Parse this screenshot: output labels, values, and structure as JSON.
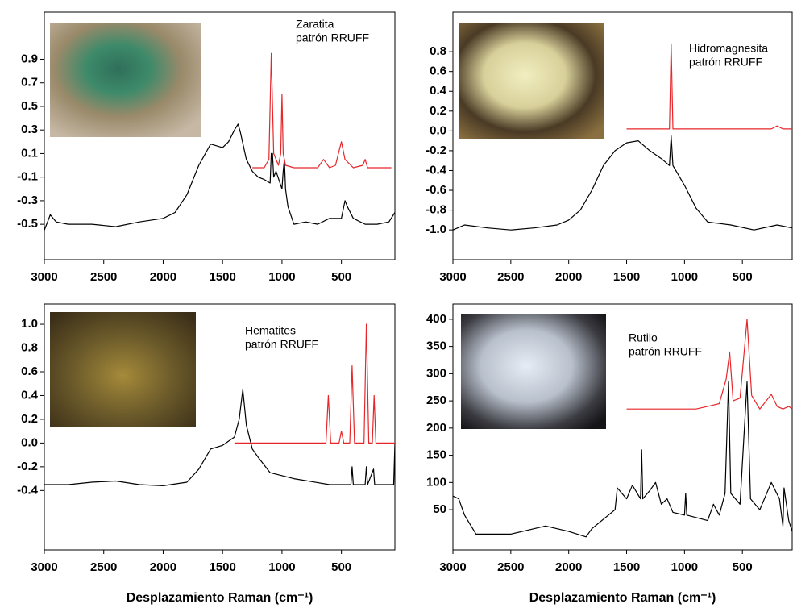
{
  "chart_data": [
    {
      "type": "line",
      "annotation": [
        "Zaratita",
        "patrón RRUFF"
      ],
      "xlim": [
        3000,
        50
      ],
      "xticks": [
        3000,
        2500,
        2000,
        1500,
        1000,
        500
      ],
      "ylim": [
        -0.8,
        1.3
      ],
      "yticks": [
        0.9,
        0.7,
        0.5,
        0.3,
        0.1,
        -0.1,
        -0.3,
        -0.5
      ],
      "series": [
        {
          "color": "#000000",
          "x": [
            3000,
            2950,
            2900,
            2800,
            2600,
            2400,
            2200,
            2000,
            1900,
            1800,
            1700,
            1600,
            1500,
            1450,
            1400,
            1370,
            1350,
            1300,
            1250,
            1200,
            1150,
            1100,
            1090,
            1080,
            1070,
            1050,
            1000,
            990,
            980,
            970,
            950,
            900,
            800,
            700,
            600,
            500,
            470,
            450,
            400,
            300,
            200,
            100,
            50
          ],
          "values": [
            -0.55,
            -0.42,
            -0.48,
            -0.5,
            -0.5,
            -0.52,
            -0.48,
            -0.45,
            -0.4,
            -0.25,
            0.0,
            0.18,
            0.15,
            0.2,
            0.3,
            0.35,
            0.28,
            0.05,
            -0.05,
            -0.1,
            -0.12,
            -0.15,
            0.1,
            0.1,
            -0.1,
            -0.05,
            -0.2,
            -0.05,
            0.05,
            -0.2,
            -0.35,
            -0.5,
            -0.48,
            -0.5,
            -0.45,
            -0.45,
            -0.3,
            -0.35,
            -0.45,
            -0.5,
            -0.5,
            -0.48,
            -0.4
          ]
        },
        {
          "color": "#e8262a",
          "x": [
            1250,
            1150,
            1110,
            1090,
            1070,
            1030,
            1010,
            1000,
            990,
            970,
            900,
            700,
            650,
            600,
            550,
            500,
            470,
            400,
            320,
            300,
            280,
            200,
            80
          ],
          "values": [
            -0.02,
            -0.02,
            0.05,
            0.95,
            0.1,
            0.0,
            0.1,
            0.6,
            0.1,
            0.0,
            -0.02,
            -0.02,
            0.05,
            -0.02,
            0.0,
            0.2,
            0.05,
            -0.02,
            0.0,
            0.05,
            -0.02,
            -0.02,
            -0.02
          ]
        }
      ]
    },
    {
      "type": "line",
      "annotation": [
        "Hidromagnesita",
        "patrón RRUFF"
      ],
      "xlim": [
        3000,
        70
      ],
      "xticks": [
        3000,
        2500,
        2000,
        1500,
        1000,
        500
      ],
      "ylim": [
        -1.3,
        1.2
      ],
      "yticks": [
        0.8,
        0.6,
        0.4,
        0.2,
        {
          "value": 0,
          "label": "0.0"
        },
        -0.2,
        -0.4,
        -0.6,
        -0.8,
        {
          "value": -1,
          "label": "-1.0"
        }
      ],
      "series": [
        {
          "color": "#000000",
          "x": [
            3000,
            2900,
            2700,
            2500,
            2300,
            2100,
            2000,
            1900,
            1800,
            1700,
            1600,
            1500,
            1400,
            1300,
            1200,
            1130,
            1115,
            1100,
            1000,
            900,
            800,
            600,
            400,
            200,
            70
          ],
          "values": [
            -1.0,
            -0.95,
            -0.98,
            -1.0,
            -0.98,
            -0.95,
            -0.9,
            -0.8,
            -0.6,
            -0.35,
            -0.2,
            -0.12,
            -0.1,
            -0.2,
            -0.28,
            -0.35,
            -0.05,
            -0.35,
            -0.55,
            -0.78,
            -0.92,
            -0.95,
            -1.0,
            -0.95,
            -0.98
          ]
        },
        {
          "color": "#e8262a",
          "x": [
            1500,
            1130,
            1115,
            1100,
            700,
            250,
            200,
            150,
            70
          ],
          "values": [
            0.02,
            0.02,
            0.88,
            0.02,
            0.02,
            0.02,
            0.05,
            0.02,
            0.02
          ]
        }
      ]
    },
    {
      "type": "line",
      "annotation": [
        "Hematites",
        "patrón RRUFF"
      ],
      "x_label": "Desplazamiento Raman (cm⁻¹)",
      "xlim": [
        3000,
        50
      ],
      "xticks": [
        3000,
        2500,
        2000,
        1500,
        1000,
        500
      ],
      "ylim": [
        -0.9,
        1.17
      ],
      "yticks": [
        {
          "value": 1,
          "label": "1.0"
        },
        0.8,
        0.6,
        0.4,
        0.2,
        {
          "value": 0,
          "label": "0.0"
        },
        -0.2,
        -0.4
      ],
      "series": [
        {
          "color": "#000000",
          "x": [
            3000,
            2800,
            2600,
            2400,
            2200,
            2000,
            1800,
            1700,
            1600,
            1500,
            1400,
            1360,
            1330,
            1300,
            1250,
            1200,
            1100,
            900,
            600,
            420,
            410,
            400,
            300,
            290,
            280,
            230,
            220,
            100,
            60,
            50
          ],
          "values": [
            -0.35,
            -0.35,
            -0.33,
            -0.32,
            -0.35,
            -0.36,
            -0.33,
            -0.22,
            -0.05,
            -0.02,
            0.05,
            0.2,
            0.45,
            0.15,
            -0.05,
            -0.12,
            -0.25,
            -0.3,
            -0.35,
            -0.35,
            -0.2,
            -0.35,
            -0.35,
            -0.2,
            -0.35,
            -0.22,
            -0.35,
            -0.35,
            -0.35,
            0.0
          ]
        },
        {
          "color": "#e8262a",
          "x": [
            1400,
            700,
            630,
            610,
            590,
            520,
            500,
            480,
            430,
            410,
            390,
            310,
            290,
            270,
            240,
            225,
            210,
            50
          ],
          "values": [
            0.0,
            0.0,
            0.0,
            0.4,
            0.0,
            0.0,
            0.1,
            0.0,
            0.0,
            0.65,
            0.0,
            0.0,
            1.0,
            0.0,
            0.0,
            0.4,
            0.0,
            0.0
          ]
        }
      ]
    },
    {
      "type": "line",
      "annotation": [
        "Rutilo",
        "patrón RRUFF"
      ],
      "x_label": "Desplazamiento Raman (cm⁻¹)",
      "xlim": [
        3000,
        70
      ],
      "xticks": [
        3000,
        2500,
        2000,
        1500,
        1000,
        500
      ],
      "ylim": [
        -24,
        428
      ],
      "yticks": [
        400,
        350,
        300,
        250,
        200,
        150,
        100,
        50
      ],
      "series": [
        {
          "color": "#000000",
          "x": [
            3000,
            2950,
            2900,
            2800,
            2500,
            2300,
            2200,
            2000,
            1850,
            1800,
            1600,
            1580,
            1500,
            1450,
            1380,
            1370,
            1360,
            1300,
            1250,
            1200,
            1150,
            1100,
            1000,
            990,
            980,
            800,
            750,
            700,
            650,
            620,
            600,
            520,
            460,
            430,
            350,
            250,
            180,
            150,
            140,
            100,
            70
          ],
          "values": [
            75,
            70,
            40,
            5,
            5,
            15,
            20,
            10,
            0,
            15,
            50,
            90,
            70,
            95,
            70,
            160,
            70,
            85,
            100,
            60,
            70,
            45,
            40,
            80,
            40,
            30,
            60,
            40,
            80,
            285,
            80,
            60,
            285,
            70,
            50,
            100,
            70,
            20,
            90,
            30,
            10
          ]
        },
        {
          "color": "#e8262a",
          "x": [
            1500,
            900,
            800,
            700,
            640,
            610,
            580,
            520,
            460,
            420,
            350,
            250,
            200,
            150,
            100,
            70
          ],
          "values": [
            235,
            235,
            240,
            245,
            290,
            340,
            250,
            255,
            400,
            260,
            235,
            262,
            240,
            235,
            240,
            235
          ]
        }
      ]
    }
  ]
}
